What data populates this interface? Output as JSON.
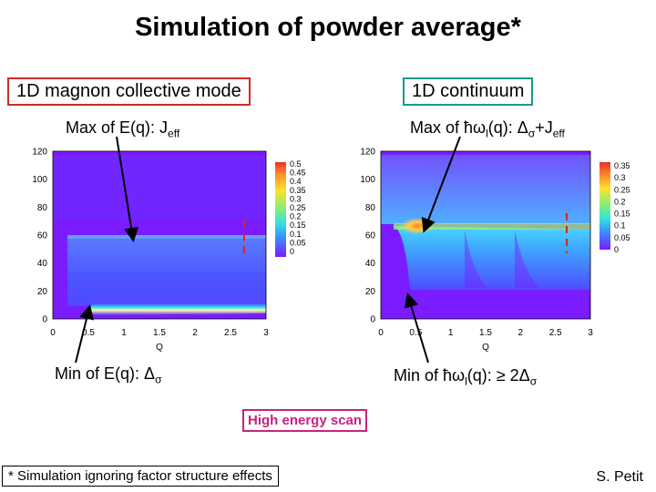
{
  "title": "Simulation of powder average*",
  "left_panel": {
    "box_label": "1D magnon collective mode",
    "max_label": "Max of E(q): J",
    "max_sub": "eff",
    "min_label": "Min of E(q): Δ",
    "min_sub": "σ"
  },
  "right_panel": {
    "box_label": "1D continuum",
    "max_label": "Max of ħω",
    "max_sub1": "l",
    "max_mid": "(q): Δ",
    "max_sub2": "σ",
    "max_plus": "+J",
    "max_sub3": "eff",
    "min_label": "Min of ħω",
    "min_sub1": "l",
    "min_mid": "(q): ≥ 2Δ",
    "min_sub2": "σ"
  },
  "high_energy_scan": "High energy scan",
  "footnote": "* Simulation ignoring factor structure effects",
  "author": "S. Petit",
  "colors": {
    "title_box_red": "#d02a2a",
    "title_box_green": "#1a9a86",
    "scan_box": "#c8237a",
    "dashed_marker": "#e02020",
    "map_low": "#7a1cff"
  },
  "chart_data": [
    {
      "type": "heatmap",
      "xlabel": "Q",
      "xlim": [
        0,
        3
      ],
      "ylim": [
        0,
        120
      ],
      "x_ticks": [
        "0",
        "0.5",
        "1",
        "1.5",
        "2",
        "2.5",
        "3"
      ],
      "y_ticks": [
        "0",
        "20",
        "40",
        "60",
        "80",
        "100",
        "120"
      ],
      "colorbar_ticks": [
        "0.5",
        "0.45",
        "0.4",
        "0.35",
        "0.3",
        "0.25",
        "0.2",
        "0.15",
        "0.1",
        "0.05",
        "0"
      ],
      "features": [
        {
          "kind": "band_top",
          "energy": 56
        },
        {
          "kind": "gap_edge",
          "energy": 8,
          "q_min": 0.5
        }
      ]
    },
    {
      "type": "heatmap",
      "xlabel": "Q",
      "xlim": [
        0,
        3
      ],
      "ylim": [
        0,
        120
      ],
      "x_ticks": [
        "0",
        "0.5",
        "1",
        "1.5",
        "2",
        "2.5",
        "3"
      ],
      "y_ticks": [
        "0",
        "20",
        "40",
        "60",
        "80",
        "100",
        "120"
      ],
      "colorbar_ticks": [
        "0.35",
        "0.3",
        "0.25",
        "0.2",
        "0.15",
        "0.1",
        "0.05",
        "0"
      ],
      "features": [
        {
          "kind": "continuum_max",
          "energy": 63
        },
        {
          "kind": "continuum_min",
          "energy": 16,
          "q_min": 0.5
        }
      ]
    }
  ]
}
